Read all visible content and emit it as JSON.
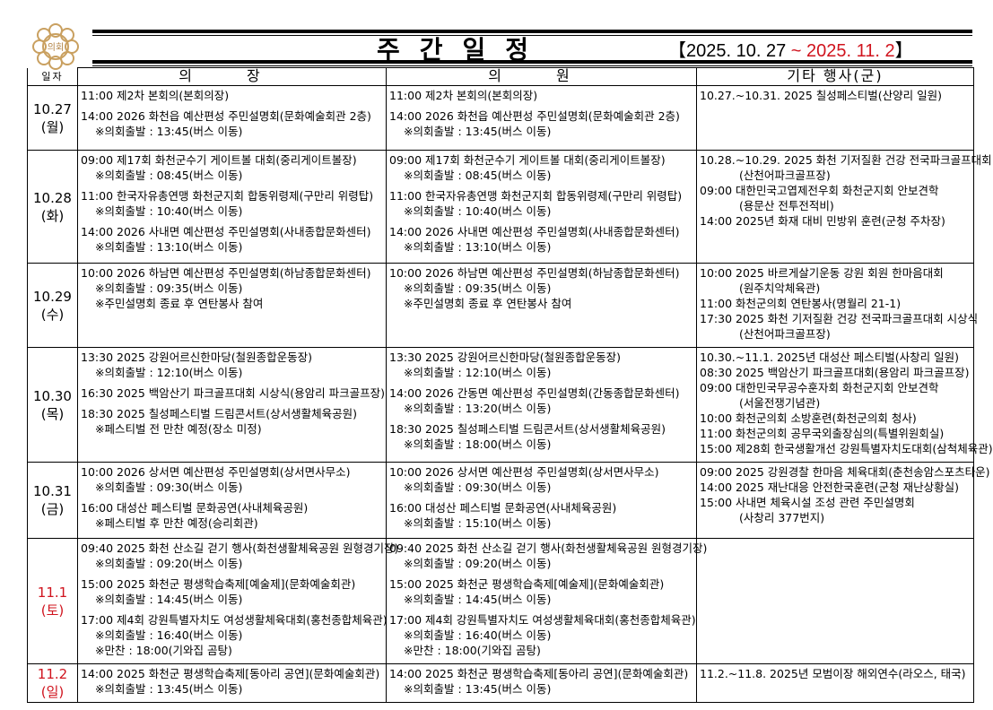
{
  "header": {
    "seal_text": "의회",
    "title": "주간일정",
    "range_open": "【2025. 10. 27 ",
    "range_red": "~ 2025. 11. 2",
    "range_close": "】",
    "accent_color": "#d0141e"
  },
  "columns": {
    "date": "일자",
    "chair": "의 장",
    "members": "의 원",
    "other": "기타 행사(군)"
  },
  "rows": [
    {
      "date": "10.27",
      "day": "(월)",
      "red": false,
      "h": 72,
      "chair": [
        [
          "11:00 제2차 본회의(본회의장)"
        ],
        [
          "14:00 2026 화천읍 예산편성 주민설명회(문화예술회관 2층)",
          "※의회출발 : 13:45(버스 이동)"
        ]
      ],
      "members": [
        [
          "11:00 제2차 본회의(본회의장)"
        ],
        [
          "14:00 2026 화천읍 예산편성 주민설명회(문화예술회관 2층)",
          "※의회출발 : 13:45(버스 이동)"
        ]
      ],
      "other": [
        [
          "10.27.~10.31. 2025 칠성페스티벌(산양리 일원)"
        ]
      ]
    },
    {
      "date": "10.28",
      "day": "(화)",
      "red": false,
      "h": 126,
      "chair": [
        [
          "09:00 제17회 화천군수기 게이트볼 대회(중리게이트볼장)",
          "※의회출발 : 08:45(버스 이동)"
        ],
        [
          "11:00 한국자유총연맹 화천군지회 합동위령제(구만리 위령탑)",
          "※의회출발 : 10:40(버스 이동)"
        ],
        [
          "14:00 2026 사내면 예산편성 주민설명회(사내종합문화센터)",
          "※의회출발 : 13:10(버스 이동)"
        ]
      ],
      "members": [
        [
          "09:00 제17회 화천군수기 게이트볼 대회(중리게이트볼장)",
          "※의회출발 : 08:45(버스 이동)"
        ],
        [
          "11:00 한국자유총연맹 화천군지회 합동위령제(구만리 위령탑)",
          "※의회출발 : 10:40(버스 이동)"
        ],
        [
          "14:00 2026 사내면 예산편성 주민설명회(사내종합문화센터)",
          "※의회출발 : 13:10(버스 이동)"
        ]
      ],
      "other": [
        [
          "10.28.~10.29. 2025 화천 기저질환 건강 전국파크골프대회",
          "(산천어파크골프장)"
        ],
        [
          "09:00 대한민국고엽제전우회 화천군지회 안보견학",
          "(용문산 전투전적비)"
        ],
        [
          "14:00 2025년 화재 대비 민방위 훈련(군청 주차장)"
        ]
      ]
    },
    {
      "date": "10.29",
      "day": "(수)",
      "red": false,
      "h": 94,
      "chair": [
        [
          "10:00 2026 하남면 예산편성 주민설명회(하남종합문화센터)",
          "※의회출발 : 09:35(버스 이동)",
          "※주민설명회 종료 후 연탄봉사 참여"
        ]
      ],
      "members": [
        [
          "10:00 2026 하남면 예산편성 주민설명회(하남종합문화센터)",
          "※의회출발 : 09:35(버스 이동)",
          "※주민설명회 종료 후 연탄봉사 참여"
        ]
      ],
      "other": [
        [
          "10:00 2025 바르게살기운동 강원 회원 한마음대회",
          "(원주치악체육관)"
        ],
        [
          "11:00 화천군의회 연탄봉사(명월리 21-1)"
        ],
        [
          "17:30 2025 화천 기저질환 건강 전국파크골프대회 시상식",
          "(산천어파크골프장)"
        ]
      ]
    },
    {
      "date": "10.30",
      "day": "(목)",
      "red": false,
      "h": 128,
      "chair": [
        [
          "13:30 2025 강원어르신한마당(철원종합운동장)",
          "※의회출발 : 12:10(버스 이동)"
        ],
        [
          "16:30 2025 백암산기 파크골프대회 시상식(용암리 파크골프장)"
        ],
        [
          "18:30 2025 칠성페스티벌 드림콘서트(상서생활체육공원)",
          "※페스티벌 전 만찬 예정(장소 미정)"
        ]
      ],
      "members": [
        [
          "13:30 2025 강원어르신한마당(철원종합운동장)",
          "※의회출발 : 12:10(버스 이동)"
        ],
        [
          "14:00 2026 간동면 예산편성 주민설명회(간동종합문화센터)",
          "※의회출발 : 13:20(버스 이동)"
        ],
        [
          "18:30 2025 칠성페스티벌 드림콘서트(상서생활체육공원)",
          "※의회출발 : 18:00(버스 이동)"
        ]
      ],
      "other": [
        [
          "10.30.~11.1. 2025년 대성산 페스티벌(사창리 일원)"
        ],
        [
          "08:30 2025 백암산기 파크골프대회(용암리 파크골프장)"
        ],
        [
          "09:00 대한민국무공수훈자회 화천군지회 안보견학",
          "(서울전쟁기념관)"
        ],
        [
          "10:00 화천군의회 소방훈련(화천군의회 청사)"
        ],
        [
          "11:00 화천군의회 공무국외출장심의(특별위원회실)"
        ],
        [
          "15:00 제28회 한국생활개선 강원특별자치도대회(삼척체육관)"
        ]
      ]
    },
    {
      "date": "10.31",
      "day": "(금)",
      "red": false,
      "h": 85,
      "chair": [
        [
          "10:00 2026 상서면 예산편성 주민설명회(상서면사무소)",
          "※의회출발 : 09:30(버스 이동)"
        ],
        [
          "16:00 대성산 페스티벌 문화공연(사내체육공원)",
          "※페스티벌 후 만찬 예정(승리회관)"
        ]
      ],
      "members": [
        [
          "10:00 2026 상서면 예산편성 주민설명회(상서면사무소)",
          "※의회출발 : 09:30(버스 이동)"
        ],
        [
          "16:00 대성산 페스티벌 문화공연(사내체육공원)",
          "※의회출발 : 15:10(버스 이동)"
        ]
      ],
      "other": [
        [
          "09:00 2025 강원경찰 한마음 체육대회(춘천송암스포츠타운)"
        ],
        [
          "14:00 2025 재난대응 안전한국훈련(군청 재난상황실)"
        ],
        [
          "15:00 사내면 체육시설 조성 관련 주민설명회",
          "(사창리 377번지)"
        ]
      ]
    },
    {
      "date": "11.1",
      "day": "(토)",
      "red": true,
      "h": 140,
      "chair": [
        [
          "09:40 2025 화천 산소길 걷기 행사(화천생활체육공원 원형경기장)",
          "※의회출발 : 09:20(버스 이동)"
        ],
        [
          "15:00 2025 화천군 평생학습축제[예술제](문화예술회관)",
          "※의회출발 : 14:45(버스 이동)"
        ],
        [
          "17:00 제4회 강원특별자치도 여성생활체육대회(홍천종합체육관)",
          "※의회출발 : 16:40(버스 이동)",
          "※만찬 : 18:00(기와집 곰탕)"
        ]
      ],
      "members": [
        [
          "09:40 2025 화천 산소길 걷기 행사(화천생활체육공원 원형경기장)",
          "※의회출발 : 09:20(버스 이동)"
        ],
        [
          "15:00 2025 화천군 평생학습축제[예술제](문화예술회관)",
          "※의회출발 : 14:45(버스 이동)"
        ],
        [
          "17:00 제4회 강원특별자치도 여성생활체육대회(홍천종합체육관)",
          "※의회출발 : 16:40(버스 이동)",
          "※만찬 : 18:00(기와집 곰탕)"
        ]
      ],
      "other": []
    },
    {
      "date": "11.2",
      "day": "(일)",
      "red": true,
      "h": 38,
      "chair": [
        [
          "14:00 2025 화천군 평생학습축제[동아리 공연](문화예술회관)",
          "※의회출발 : 13:45(버스 이동)"
        ]
      ],
      "members": [
        [
          "14:00 2025 화천군 평생학습축제[동아리 공연](문화예술회관)",
          "※의회출발 : 13:45(버스 이동)"
        ]
      ],
      "other": [
        [
          "11.2.~11.8. 2025년 모범이장 해외연수(라오스, 태국)"
        ]
      ]
    }
  ]
}
